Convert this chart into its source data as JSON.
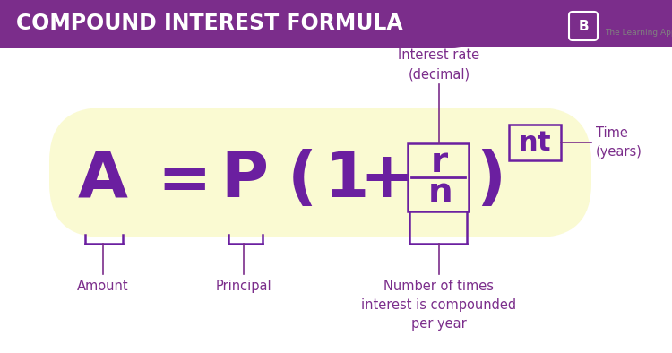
{
  "title": "COMPOUND INTEREST FORMULA",
  "title_bg_color": "#7B2D8B",
  "title_text_color": "#FFFFFF",
  "formula_pill_color": "#FAFAD2",
  "formula_color": "#6B1FA0",
  "annotation_color": "#7B2D8B",
  "bg_color": "#FFFFFF",
  "label_amount": "Amount",
  "label_principal": "Principal",
  "label_n": "Number of times\ninterest is compounded\nper year",
  "label_r": "Interest rate\n(decimal)",
  "label_nt": "Time\n(years)"
}
